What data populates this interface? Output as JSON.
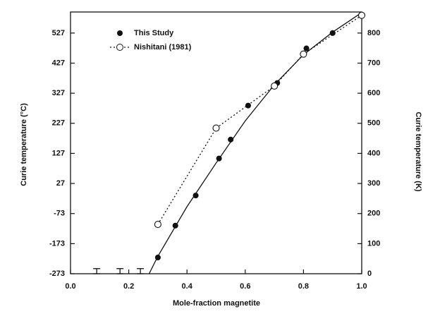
{
  "chart_data": {
    "type": "scatter",
    "xlabel": "Mole-fraction magnetite",
    "ylabel": "Curie temperature (°C)",
    "y2label": "Curie temperature (K)",
    "xlim": [
      0,
      1
    ],
    "xticks": [
      {
        "value": 0,
        "label": "0.0"
      },
      0.2,
      0.4,
      0.6,
      0.8,
      {
        "value": 1,
        "label": "1.0"
      }
    ],
    "ylim": [
      -273,
      597
    ],
    "yticks": [
      -273,
      -173,
      -73,
      27,
      127,
      227,
      327,
      427,
      527
    ],
    "y2lim": [
      0,
      870
    ],
    "y2ticks": [
      0,
      100,
      200,
      300,
      400,
      500,
      600,
      700,
      800
    ],
    "legend": "upper left",
    "series": [
      {
        "name": "This Study",
        "color": "#111111",
        "marker": "filled",
        "line": "solid",
        "x": [
          0.3,
          0.36,
          0.43,
          0.51,
          0.55,
          0.61,
          0.71,
          0.81,
          0.9,
          1.0
        ],
        "values": [
          -219,
          -113,
          -13,
          110,
          173,
          286,
          361,
          476,
          527,
          586
        ],
        "curve_x": [
          0.27,
          0.3,
          0.4,
          0.5,
          0.6,
          0.7,
          0.8,
          0.9,
          1.0
        ],
        "curve_values": [
          -273,
          -215,
          -50,
          95,
          235,
          355,
          455,
          530,
          595
        ]
      },
      {
        "name": "Nishitani (1981)",
        "color": "#111111",
        "marker": "open",
        "line": "dotted",
        "x": [
          0.3,
          0.5,
          0.7,
          0.8,
          1.0
        ],
        "values": [
          -109,
          211,
          351,
          457,
          586
        ],
        "curve_x": [
          0.3,
          0.5,
          0.7,
          0.8,
          1.0
        ],
        "curve_values": [
          -109,
          211,
          351,
          457,
          586
        ]
      }
    ],
    "error_bars": {
      "x": [
        0.09,
        0.17,
        0.24
      ],
      "low": [
        -273,
        -273,
        -273
      ],
      "high": [
        -256,
        -256,
        -256
      ]
    }
  }
}
